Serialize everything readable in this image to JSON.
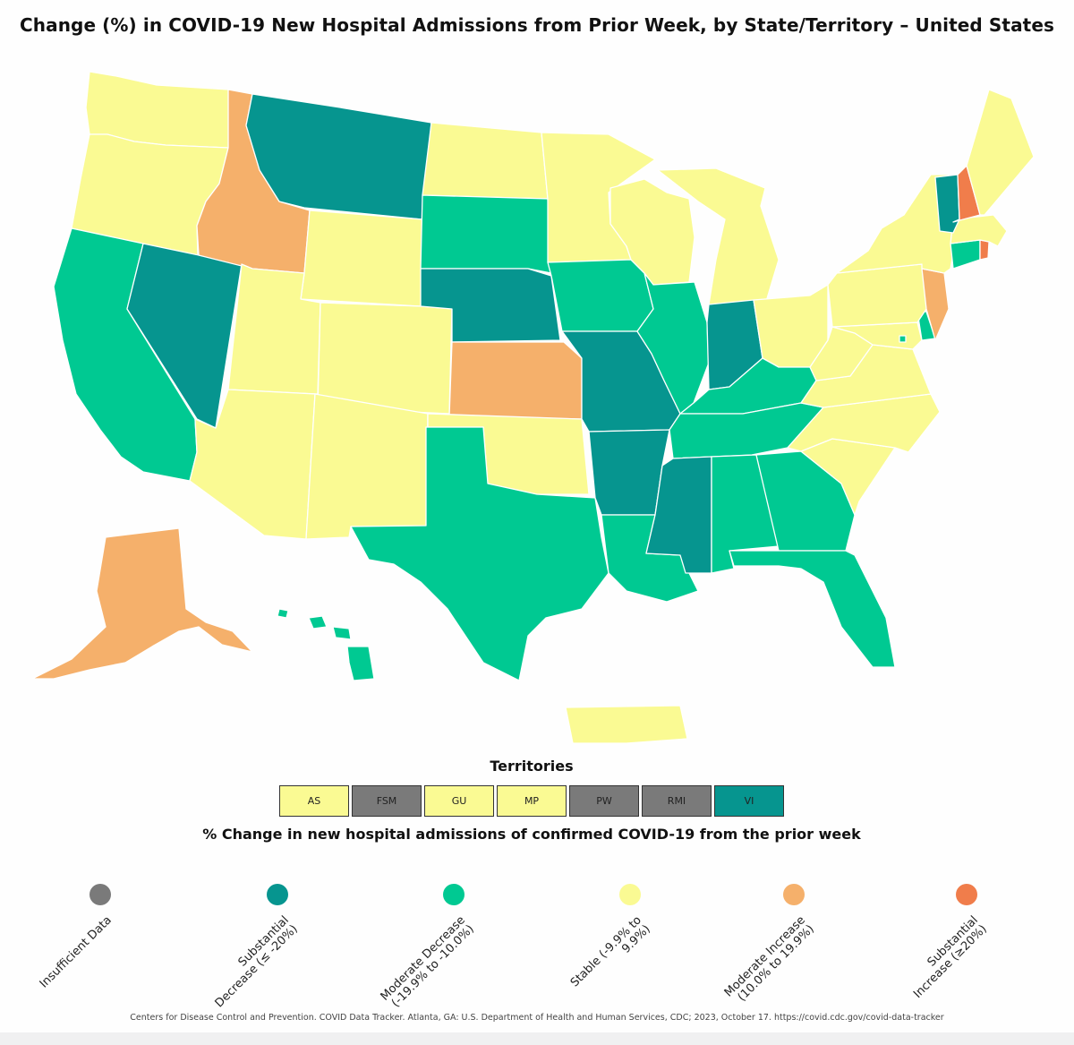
{
  "title": "Change (%) in COVID-19 New Hospital Admissions from Prior Week, by State/Territory – United States",
  "colors": {
    "insufficient": "#7a7a7a",
    "substantial_decrease": "#06958f",
    "moderate_decrease": "#00c992",
    "stable": "#fafa93",
    "moderate_increase": "#f5b06b",
    "substantial_increase": "#f07d4b"
  },
  "states": {
    "WA": "stable",
    "OR": "stable",
    "CA": "moderate_decrease",
    "NV": "substantial_decrease",
    "ID": "moderate_increase",
    "MT": "substantial_decrease",
    "WY": "stable",
    "UT": "stable",
    "AZ": "stable",
    "CO": "stable",
    "NM": "stable",
    "ND": "stable",
    "SD": "moderate_decrease",
    "NE": "substantial_decrease",
    "KS": "moderate_increase",
    "OK": "stable",
    "TX": "moderate_decrease",
    "MN": "stable",
    "IA": "moderate_decrease",
    "MO": "substantial_decrease",
    "AR": "substantial_decrease",
    "LA": "moderate_decrease",
    "WI": "stable",
    "IL": "moderate_decrease",
    "MI": "stable",
    "IN": "substantial_decrease",
    "OH": "stable",
    "KY": "moderate_decrease",
    "TN": "moderate_decrease",
    "MS": "substantial_decrease",
    "AL": "moderate_decrease",
    "GA": "moderate_decrease",
    "FL": "moderate_decrease",
    "SC": "stable",
    "NC": "stable",
    "VA": "stable",
    "WV": "stable",
    "MD": "stable",
    "DE": "moderate_decrease",
    "PA": "stable",
    "NJ": "moderate_increase",
    "NY": "stable",
    "CT": "moderate_decrease",
    "RI": "substantial_increase",
    "MA": "stable",
    "VT": "substantial_decrease",
    "NH": "substantial_increase",
    "ME": "stable",
    "DC": "moderate_decrease",
    "AK": "moderate_increase",
    "HI": "moderate_decrease",
    "PR": "stable"
  },
  "territories": {
    "title": "Territories",
    "items": [
      {
        "label": "AS",
        "category": "stable"
      },
      {
        "label": "FSM",
        "category": "insufficient"
      },
      {
        "label": "GU",
        "category": "stable"
      },
      {
        "label": "MP",
        "category": "stable"
      },
      {
        "label": "PW",
        "category": "insufficient"
      },
      {
        "label": "RMI",
        "category": "insufficient"
      },
      {
        "label": "VI",
        "category": "substantial_decrease"
      }
    ]
  },
  "legend": {
    "title": "% Change in new hospital admissions of confirmed COVID-19 from the prior week",
    "items": [
      {
        "category": "insufficient",
        "label": "Insufficient Data"
      },
      {
        "category": "substantial_decrease",
        "label": "Substantial Decrease (≤ -20%)"
      },
      {
        "category": "moderate_decrease",
        "label": "Moderate Decrease (-19.9% to -10.0%)"
      },
      {
        "category": "stable",
        "label": "Stable (-9.9% to 9.9%)"
      },
      {
        "category": "moderate_increase",
        "label": "Moderate Increase (10.0% to 19.9%)"
      },
      {
        "category": "substantial_increase",
        "label": "Substantial Increase (≥20%)"
      }
    ]
  },
  "source": "Centers for Disease Control and Prevention. COVID Data Tracker. Atlanta, GA: U.S. Department of Health and Human Services, CDC; 2023, October 17. https://covid.cdc.gov/covid-data-tracker"
}
